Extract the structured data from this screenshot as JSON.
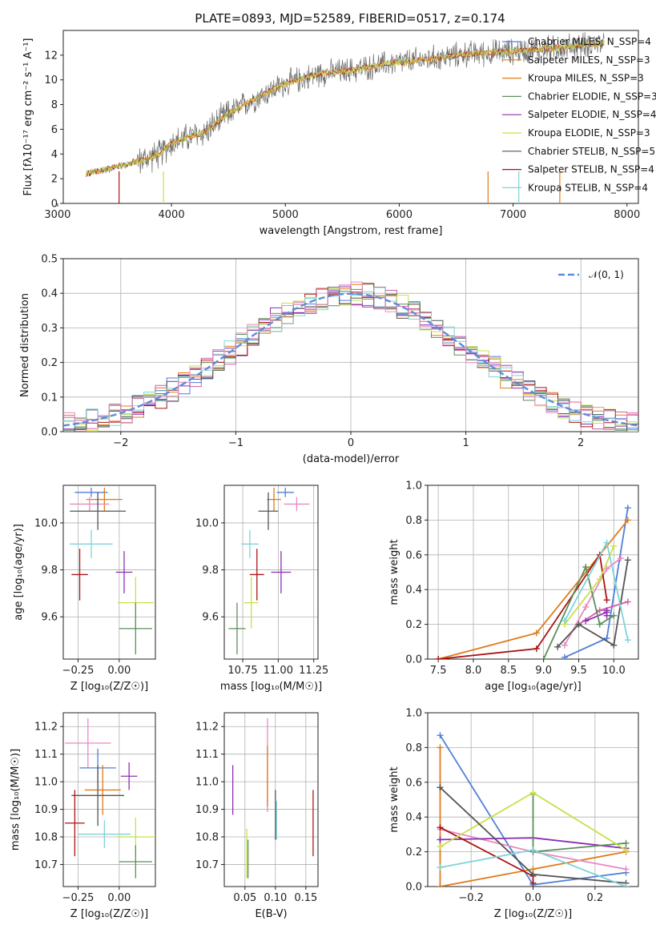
{
  "colors": [
    "#4f7fd9",
    "#e07b1a",
    "#cf5fa5",
    "#e98ac0",
    "#8c2fb0",
    "#aa1515",
    "#5c8f5c",
    "#c8e04a",
    "#555555",
    "#7fd3d8"
  ],
  "figure_title": "PLATE=0893, MJD=52589, FIBERID=0517, z=0.174",
  "chart_data": [
    {
      "id": "spectrum",
      "type": "line",
      "xlabel": "wavelength [Angstrom, rest frame]",
      "ylabel": "Flux [fλ10⁻¹⁷ erg cm⁻² s⁻¹ A⁻¹]",
      "xlim": [
        3050,
        8100
      ],
      "ylim": [
        0,
        14
      ],
      "xticks": [
        "3000",
        "4000",
        "5000",
        "6000",
        "7000",
        "8000"
      ],
      "yticks": [
        "0",
        "2",
        "4",
        "6",
        "8",
        "10",
        "12"
      ],
      "continuum": {
        "x": [
          3250,
          3500,
          3700,
          3900,
          4000,
          4300,
          4500,
          4800,
          5000,
          5300,
          5600,
          5900,
          6200,
          6600,
          7000,
          7400,
          7800
        ],
        "y": [
          2.4,
          2.9,
          3.4,
          4.0,
          4.9,
          5.8,
          7.3,
          8.8,
          9.7,
          10.5,
          10.8,
          11.3,
          11.6,
          12.1,
          12.3,
          12.6,
          13.0
        ]
      },
      "legend": [
        "Chabrier MILES, N_SSP=4",
        "Salpeter MILES, N_SSP=3",
        "Kroupa MILES, N_SSP=3",
        "Chabrier ELODIE, N_SSP=3",
        "Salpeter ELODIE, N_SSP=4",
        "Kroupa ELODIE, N_SSP=3",
        "Chabrier STELIB, N_SSP=5",
        "Salpeter STELIB, N_SSP=4",
        "Kroupa STELIB, N_SSP=4"
      ],
      "legend_position": "upper right"
    },
    {
      "id": "residuals",
      "type": "histogram",
      "xlabel": "(data-model)/error",
      "ylabel": "Normed distribution",
      "xlim": [
        -2.5,
        2.5
      ],
      "ylim": [
        0,
        0.5
      ],
      "xticks": [
        "−2",
        "−1",
        "0",
        "1",
        "2"
      ],
      "yticks": [
        "0.0",
        "0.1",
        "0.2",
        "0.3",
        "0.4",
        "0.5"
      ],
      "bin_width": 0.1,
      "reference_label": "𝒩(0, 1)",
      "legend_position": "upper right"
    },
    {
      "id": "age_vs_Z",
      "type": "scatter",
      "xlabel": "Z [log₁₀(Z/Z☉)]",
      "ylabel": "age  [log₁₀(age/yr)]",
      "xlim": [
        -0.34,
        0.22
      ],
      "ylim": [
        9.42,
        10.16
      ],
      "xticks": [
        "−0.25",
        "0.00"
      ],
      "yticks": [
        "9.6",
        "9.8",
        "10.0"
      ],
      "points": [
        {
          "x": -0.17,
          "y": 10.13,
          "xerr": 0.1,
          "yerr": 0.02,
          "c": 0
        },
        {
          "x": -0.09,
          "y": 10.1,
          "xerr": 0.11,
          "yerr": 0.05,
          "c": 1
        },
        {
          "x": -0.18,
          "y": 10.08,
          "xerr": 0.12,
          "yerr": 0.03,
          "c": 3
        },
        {
          "x": -0.13,
          "y": 10.05,
          "xerr": 0.17,
          "yerr": 0.08,
          "c": 8
        },
        {
          "x": -0.17,
          "y": 9.91,
          "xerr": 0.13,
          "yerr": 0.06,
          "c": 9
        },
        {
          "x": 0.03,
          "y": 9.79,
          "xerr": 0.05,
          "yerr": 0.09,
          "c": 4
        },
        {
          "x": -0.24,
          "y": 9.78,
          "xerr": 0.05,
          "yerr": 0.11,
          "c": 5
        },
        {
          "x": 0.1,
          "y": 9.66,
          "xerr": 0.11,
          "yerr": 0.11,
          "c": 7
        },
        {
          "x": 0.1,
          "y": 9.55,
          "xerr": 0.1,
          "yerr": 0.11,
          "c": 6
        }
      ]
    },
    {
      "id": "age_vs_mass",
      "type": "scatter",
      "xlabel": "mass [log₁₀(M/M☉)]",
      "ylabel": "",
      "xlim": [
        10.62,
        11.28
      ],
      "ylim": [
        9.42,
        10.16
      ],
      "xticks": [
        "10.75",
        "11.00",
        "11.25"
      ],
      "yticks": [
        "9.6",
        "9.8",
        "10.0"
      ],
      "points": [
        {
          "x": 11.05,
          "y": 10.13,
          "xerr": 0.06,
          "yerr": 0.02,
          "c": 0
        },
        {
          "x": 10.97,
          "y": 10.1,
          "xerr": 0.05,
          "yerr": 0.05,
          "c": 1
        },
        {
          "x": 11.13,
          "y": 10.08,
          "xerr": 0.09,
          "yerr": 0.03,
          "c": 3
        },
        {
          "x": 10.93,
          "y": 10.05,
          "xerr": 0.07,
          "yerr": 0.08,
          "c": 8
        },
        {
          "x": 10.8,
          "y": 9.91,
          "xerr": 0.06,
          "yerr": 0.06,
          "c": 9
        },
        {
          "x": 11.02,
          "y": 9.79,
          "xerr": 0.07,
          "yerr": 0.09,
          "c": 4
        },
        {
          "x": 10.85,
          "y": 9.78,
          "xerr": 0.05,
          "yerr": 0.11,
          "c": 5
        },
        {
          "x": 10.81,
          "y": 9.66,
          "xerr": 0.05,
          "yerr": 0.11,
          "c": 7
        },
        {
          "x": 10.71,
          "y": 9.55,
          "xerr": 0.06,
          "yerr": 0.11,
          "c": 6
        }
      ]
    },
    {
      "id": "weight_vs_age",
      "type": "line",
      "xlabel": "age  [log₁₀(age/yr)]",
      "ylabel": "mass weight",
      "xlim": [
        7.35,
        10.35
      ],
      "ylim": [
        0,
        1
      ],
      "xticks": [
        "7.5",
        "8.0",
        "8.5",
        "9.0",
        "9.5",
        "10.0"
      ],
      "yticks": [
        "0.0",
        "0.2",
        "0.4",
        "0.6",
        "0.8",
        "1.0"
      ],
      "series": [
        {
          "c": 0,
          "x": [
            9.3,
            9.9,
            10.2
          ],
          "y": [
            0.01,
            0.12,
            0.87
          ]
        },
        {
          "c": 1,
          "x": [
            7.5,
            8.9,
            10.2
          ],
          "y": [
            0.0,
            0.15,
            0.8
          ]
        },
        {
          "c": 3,
          "x": [
            9.3,
            9.6,
            9.9,
            10.1
          ],
          "y": [
            0.08,
            0.3,
            0.52,
            0.58
          ]
        },
        {
          "c": 2,
          "x": [
            9.5,
            9.8,
            10.2
          ],
          "y": [
            0.2,
            0.28,
            0.33
          ]
        },
        {
          "c": 4,
          "x": [
            9.6,
            9.9,
            9.9,
            9.9
          ],
          "y": [
            0.22,
            0.27,
            0.28,
            0.25
          ]
        },
        {
          "c": 5,
          "x": [
            7.5,
            8.9,
            9.8,
            9.9
          ],
          "y": [
            0.0,
            0.06,
            0.6,
            0.34
          ]
        },
        {
          "c": 6,
          "x": [
            9.0,
            9.6,
            9.8,
            10.0
          ],
          "y": [
            0.0,
            0.53,
            0.2,
            0.25
          ]
        },
        {
          "c": 7,
          "x": [
            9.3,
            9.8,
            10.0
          ],
          "y": [
            0.2,
            0.46,
            0.65
          ]
        },
        {
          "c": 8,
          "x": [
            9.2,
            9.5,
            10.0,
            10.2
          ],
          "y": [
            0.07,
            0.2,
            0.08,
            0.57
          ]
        },
        {
          "c": 9,
          "x": [
            9.3,
            9.9,
            10.2
          ],
          "y": [
            0.22,
            0.67,
            0.11
          ]
        }
      ]
    },
    {
      "id": "mass_vs_Z",
      "type": "scatter",
      "xlabel": "Z [log₁₀(Z/Z☉)]",
      "ylabel": "mass [log₁₀(M/M☉)]",
      "xlim": [
        -0.34,
        0.22
      ],
      "ylim": [
        10.62,
        11.25
      ],
      "xticks": [
        "−0.25",
        "0.00"
      ],
      "yticks": [
        "10.7",
        "10.8",
        "10.9",
        "11.0",
        "11.1",
        "11.2"
      ],
      "points": [
        {
          "x": -0.19,
          "y": 11.14,
          "xerr": 0.14,
          "yerr": 0.09,
          "c": 3
        },
        {
          "x": -0.13,
          "y": 11.05,
          "xerr": 0.11,
          "yerr": 0.07,
          "c": 0
        },
        {
          "x": 0.06,
          "y": 11.02,
          "xerr": 0.05,
          "yerr": 0.05,
          "c": 4
        },
        {
          "x": -0.1,
          "y": 10.97,
          "xerr": 0.11,
          "yerr": 0.09,
          "c": 1
        },
        {
          "x": -0.13,
          "y": 10.95,
          "xerr": 0.16,
          "yerr": 0.11,
          "c": 8
        },
        {
          "x": -0.27,
          "y": 10.85,
          "xerr": 0.06,
          "yerr": 0.12,
          "c": 5
        },
        {
          "x": -0.09,
          "y": 10.81,
          "xerr": 0.16,
          "yerr": 0.05,
          "c": 9
        },
        {
          "x": 0.1,
          "y": 10.8,
          "xerr": 0.12,
          "yerr": 0.07,
          "c": 7
        },
        {
          "x": 0.1,
          "y": 10.71,
          "xerr": 0.1,
          "yerr": 0.06,
          "c": 6
        }
      ]
    },
    {
      "id": "mass_vs_ebv",
      "type": "scatter",
      "xlabel": "E(B-V)",
      "ylabel": "",
      "xlim": [
        0.016,
        0.17
      ],
      "ylim": [
        10.62,
        11.25
      ],
      "xticks": [
        "0.05",
        "0.10",
        "0.15"
      ],
      "yticks": [
        "10.7",
        "10.8",
        "10.9",
        "11.0",
        "11.1",
        "11.2"
      ],
      "points": [
        {
          "x": 0.087,
          "y": 11.06,
          "yerr": 0.17,
          "c": 3
        },
        {
          "x": 0.087,
          "y": 11.02,
          "yerr": 0.11,
          "c": 1
        },
        {
          "x": 0.03,
          "y": 10.97,
          "yerr": 0.09,
          "c": 4
        },
        {
          "x": 0.1,
          "y": 10.88,
          "yerr": 0.09,
          "c": 8
        },
        {
          "x": 0.102,
          "y": 10.86,
          "yerr": 0.07,
          "c": 9
        },
        {
          "x": 0.162,
          "y": 10.85,
          "yerr": 0.12,
          "c": 5
        },
        {
          "x": 0.053,
          "y": 10.74,
          "yerr": 0.09,
          "c": 7
        },
        {
          "x": 0.055,
          "y": 10.72,
          "yerr": 0.07,
          "c": 6
        }
      ]
    },
    {
      "id": "weight_vs_Z",
      "type": "line",
      "xlabel": "Z [log₁₀(Z/Z☉)]",
      "ylabel": "mass weight",
      "xlim": [
        -0.34,
        0.34
      ],
      "ylim": [
        0,
        1
      ],
      "xticks": [
        "−0.2",
        "0.0",
        "0.2"
      ],
      "yticks": [
        "0.0",
        "0.2",
        "0.4",
        "0.6",
        "0.8",
        "1.0"
      ],
      "series": [
        {
          "c": 0,
          "x": [
            -0.3,
            0.0,
            0.3
          ],
          "y": [
            0.87,
            0.01,
            0.08
          ]
        },
        {
          "c": 1,
          "x": [
            -0.3,
            -0.3,
            0.0,
            0.3
          ],
          "y": [
            0.8,
            0.0,
            0.1,
            0.2
          ]
        },
        {
          "c": 3,
          "x": [
            -0.3,
            0.0,
            0.3
          ],
          "y": [
            0.33,
            0.2,
            0.1
          ]
        },
        {
          "c": 4,
          "x": [
            -0.3,
            0.0,
            0.3
          ],
          "y": [
            0.27,
            0.28,
            0.22
          ]
        },
        {
          "c": 5,
          "x": [
            -0.3,
            0.0,
            0.0
          ],
          "y": [
            0.34,
            0.06,
            0.02
          ]
        },
        {
          "c": 6,
          "x": [
            0.0,
            0.0,
            0.3
          ],
          "y": [
            0.53,
            0.2,
            0.25
          ]
        },
        {
          "c": 7,
          "x": [
            -0.3,
            0.0,
            0.3
          ],
          "y": [
            0.23,
            0.54,
            0.21
          ]
        },
        {
          "c": 8,
          "x": [
            -0.3,
            0.0,
            0.3
          ],
          "y": [
            0.57,
            0.07,
            0.02
          ]
        },
        {
          "c": 9,
          "x": [
            -0.3,
            0.0,
            0.3
          ],
          "y": [
            0.11,
            0.21,
            0.0
          ]
        }
      ]
    }
  ]
}
